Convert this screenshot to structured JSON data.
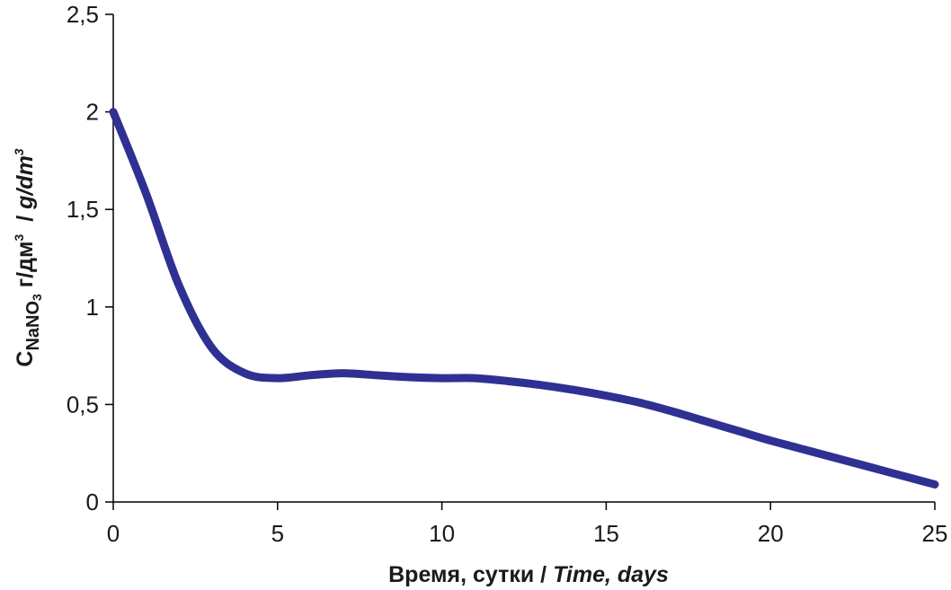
{
  "chart_data": {
    "type": "line",
    "title": "",
    "xlabel": {
      "main": "Время, сутки / ",
      "italic": "Time, days"
    },
    "ylabel": {
      "prefix": "C",
      "compound": "NaNO",
      "subscript": "3",
      "unit_ru": " г/дм",
      "unit_ru_sup": "3",
      "separator": "  / ",
      "unit_en": "g/dm",
      "unit_en_sup": "3"
    },
    "xlim": [
      0,
      25
    ],
    "ylim": [
      0,
      2.5
    ],
    "x_ticks": [
      0,
      5,
      10,
      15,
      20,
      25
    ],
    "x_tick_labels": [
      "0",
      "5",
      "10",
      "15",
      "20",
      "25"
    ],
    "y_ticks": [
      0,
      0.5,
      1,
      1.5,
      2,
      2.5
    ],
    "y_tick_labels": [
      "0",
      "0,5",
      "1",
      "1,5",
      "2",
      "2,5"
    ],
    "grid": false,
    "series": [
      {
        "color": "#2e3192",
        "x": [
          0,
          1,
          2,
          3,
          4,
          5,
          6,
          7,
          8,
          9,
          10,
          11,
          12,
          13,
          14,
          15,
          16,
          17,
          18,
          19,
          20,
          21,
          22,
          23,
          24,
          25
        ],
        "y": [
          2.0,
          1.58,
          1.11,
          0.79,
          0.66,
          0.635,
          0.65,
          0.66,
          0.65,
          0.64,
          0.635,
          0.635,
          0.62,
          0.6,
          0.575,
          0.545,
          0.51,
          0.465,
          0.415,
          0.365,
          0.315,
          0.27,
          0.225,
          0.18,
          0.135,
          0.09
        ]
      }
    ]
  }
}
